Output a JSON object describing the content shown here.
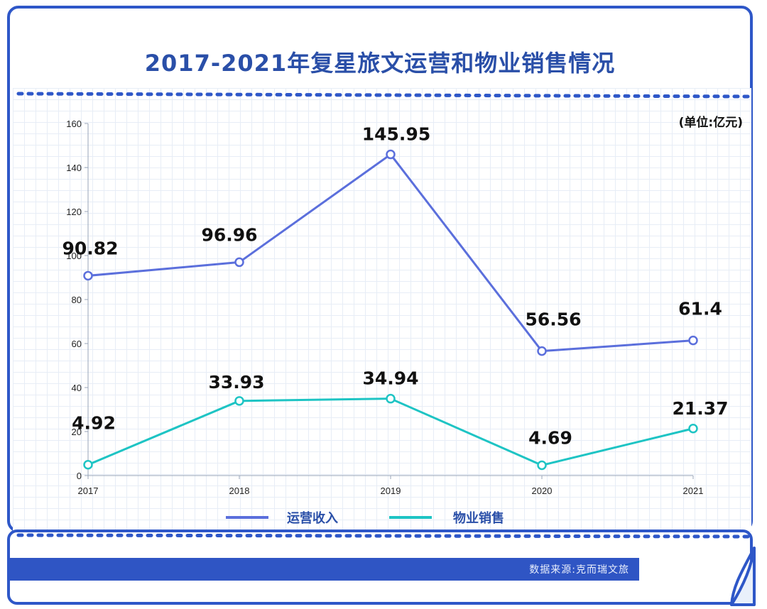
{
  "header": {
    "title": "2017-2021年复星旅文运营和物业销售情况"
  },
  "footer": {
    "source": "数据来源:克而瑞文旅"
  },
  "colors": {
    "frame": "#2e57c8",
    "series_1": "#5b6fdc",
    "series_2": "#1ec4c4",
    "title": "#2a4fa8"
  },
  "chart_data": {
    "type": "line",
    "title": "2017-2021年复星旅文运营和物业销售情况",
    "unit_label": "(单位:亿元)",
    "categories": [
      "2017",
      "2018",
      "2019",
      "2020",
      "2021"
    ],
    "ylim": [
      0,
      160
    ],
    "yticks": [
      0,
      20,
      40,
      60,
      80,
      100,
      120,
      140,
      160
    ],
    "grid": true,
    "legend_position": "bottom",
    "series": [
      {
        "name": "运营收入",
        "values": [
          90.82,
          96.96,
          145.95,
          56.56,
          61.4
        ],
        "labels": [
          "90.82",
          "96.96",
          "145.95",
          "56.56",
          "61.4"
        ]
      },
      {
        "name": "物业销售",
        "values": [
          4.92,
          33.93,
          34.94,
          4.69,
          21.37
        ],
        "labels": [
          "4.92",
          "33.93",
          "34.94",
          "4.69",
          "21.37"
        ]
      }
    ]
  }
}
